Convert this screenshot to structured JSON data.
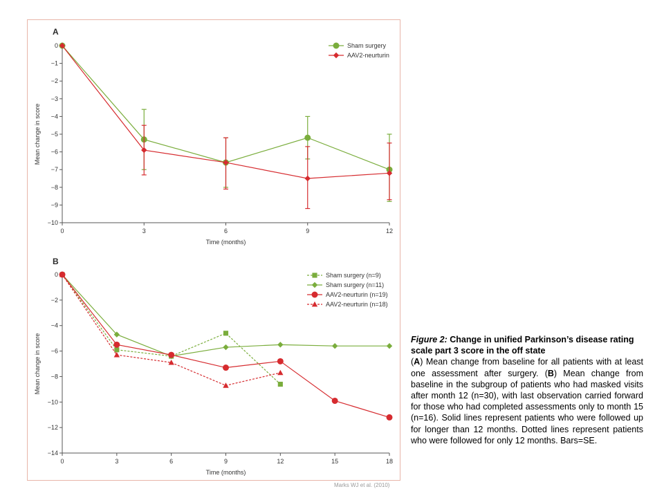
{
  "colors": {
    "sham": "#7aad3c",
    "aav2": "#d62b2f",
    "axis": "#555555",
    "frame": "#e8b5a8"
  },
  "chart_data": [
    {
      "panel": "A",
      "type": "line",
      "xlabel": "Time (months)",
      "ylabel": "Mean change in score",
      "xlim": [
        0,
        12
      ],
      "ylim": [
        -10,
        0
      ],
      "x_ticks": [
        0,
        3,
        6,
        9,
        12
      ],
      "y_ticks": [
        0,
        -1,
        -2,
        -3,
        -4,
        -5,
        -6,
        -7,
        -8,
        -9,
        -10
      ],
      "y_tick_labels": [
        "0",
        "−1",
        "−2",
        "−3",
        "−4",
        "−5",
        "−6",
        "−7",
        "−8",
        "−9",
        "−10"
      ],
      "grid": false,
      "legend": "top-right",
      "series": [
        {
          "name": "Sham surgery",
          "color": "#7aad3c",
          "marker": "circle",
          "style": "solid",
          "x": [
            0,
            3,
            6,
            9,
            12
          ],
          "y": [
            0,
            -5.3,
            -6.6,
            -5.2,
            -7.0
          ],
          "err_low": [
            null,
            -7.0,
            -8.0,
            -6.4,
            -8.8
          ],
          "err_high": [
            null,
            -3.6,
            -5.2,
            -4.0,
            -5.0
          ]
        },
        {
          "name": "AAV2-neurturin",
          "color": "#d62b2f",
          "marker": "diamond",
          "style": "solid",
          "x": [
            0,
            3,
            6,
            9,
            12
          ],
          "y": [
            0,
            -5.9,
            -6.6,
            -7.5,
            -7.2
          ],
          "err_low": [
            null,
            -7.3,
            -8.1,
            -9.2,
            -8.7
          ],
          "err_high": [
            null,
            -4.5,
            -5.2,
            -5.7,
            -5.5
          ]
        }
      ]
    },
    {
      "panel": "B",
      "type": "line",
      "xlabel": "Time (months)",
      "ylabel": "Mean change in score",
      "xlim": [
        0,
        18
      ],
      "ylim": [
        -14,
        0
      ],
      "x_ticks": [
        0,
        3,
        6,
        9,
        12,
        15,
        18
      ],
      "y_ticks": [
        0,
        -2,
        -4,
        -6,
        -8,
        -10,
        -12,
        -14
      ],
      "y_tick_labels": [
        "0",
        "−2",
        "−4",
        "−6",
        "−8",
        "−10",
        "−12",
        "−14"
      ],
      "grid": false,
      "legend": "top-right",
      "series": [
        {
          "name": "Sham surgery (n=9)",
          "color": "#7aad3c",
          "marker": "square",
          "style": "dotted",
          "x": [
            0,
            3,
            6,
            9,
            12
          ],
          "y": [
            0,
            -5.9,
            -6.4,
            -4.6,
            -8.6
          ]
        },
        {
          "name": "Sham surgery (n=11)",
          "color": "#7aad3c",
          "marker": "diamond",
          "style": "solid",
          "x": [
            0,
            3,
            6,
            9,
            12,
            15,
            18
          ],
          "y": [
            0,
            -4.7,
            -6.4,
            -5.7,
            -5.5,
            -5.6,
            -5.6
          ]
        },
        {
          "name": "AAV2-neurturin (n=19)",
          "color": "#d62b2f",
          "marker": "circle",
          "style": "solid",
          "x": [
            0,
            3,
            6,
            9,
            12,
            15,
            18
          ],
          "y": [
            0,
            -5.5,
            -6.3,
            -7.3,
            -6.8,
            -9.9,
            -11.2
          ]
        },
        {
          "name": "AAV2-neurturin (n=18)",
          "color": "#d62b2f",
          "marker": "triangle",
          "style": "dotted",
          "x": [
            0,
            3,
            6,
            9,
            12
          ],
          "y": [
            0,
            -6.3,
            -6.9,
            -8.7,
            -7.7
          ]
        }
      ]
    }
  ],
  "credit": "Marks WJ et al. (2010)",
  "caption": {
    "figure_number": "Figure 2:",
    "title": " Change in unified Parkinson’s disease rating scale part 3 score in the off state",
    "body_open": "(",
    "panel_a": "A",
    "body_a": ") Mean change from baseline for all patients with at least one assessment after surgery. (",
    "panel_b": "B",
    "body_b": ") Mean change from baseline in the subgroup of patients who had masked visits after month 12 (n=30), with last observation carried forward for those who had completed assessments only to month 15 (n=16). Solid lines represent patients who were followed up for longer than 12 months. Dotted lines represent patients who were followed for only 12 months. Bars=SE."
  }
}
